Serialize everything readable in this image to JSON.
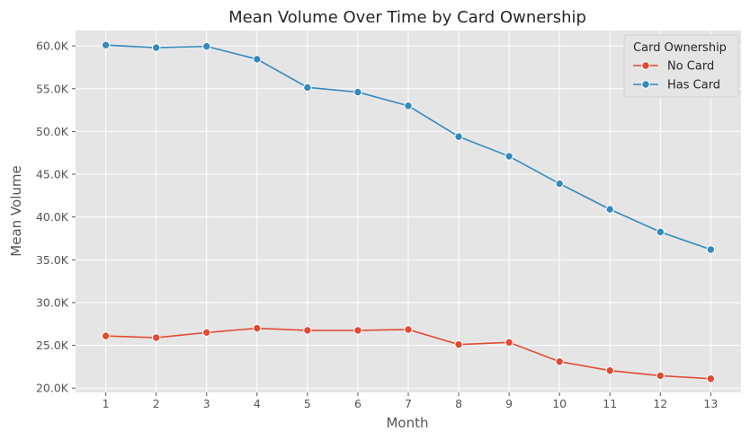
{
  "chart_data": {
    "type": "line",
    "title": "Mean Volume Over Time by Card Ownership",
    "xlabel": "Month",
    "ylabel": "Mean Volume",
    "x": [
      1,
      2,
      3,
      4,
      5,
      6,
      7,
      8,
      9,
      10,
      11,
      12,
      13
    ],
    "xlim": [
      0.4,
      13.6
    ],
    "ylim": [
      19500,
      61800
    ],
    "yticks": [
      20000,
      25000,
      30000,
      35000,
      40000,
      45000,
      50000,
      55000,
      60000
    ],
    "ytick_labels": [
      "20.0K",
      "25.0K",
      "30.0K",
      "35.0K",
      "40.0K",
      "45.0K",
      "50.0K",
      "55.0K",
      "60.0K"
    ],
    "grid": true,
    "legend": {
      "title": "Card Ownership",
      "position": "top-right"
    },
    "series": [
      {
        "name": "No Card",
        "color": "#E24A33",
        "values": [
          26100,
          25900,
          26500,
          27000,
          26750,
          26750,
          26850,
          25100,
          25350,
          23100,
          22050,
          21450,
          21100
        ]
      },
      {
        "name": "Has Card",
        "color": "#348ABD",
        "values": [
          60100,
          59800,
          59950,
          58450,
          55150,
          54600,
          53000,
          49400,
          47100,
          43900,
          40900,
          38250,
          36200
        ]
      }
    ]
  }
}
